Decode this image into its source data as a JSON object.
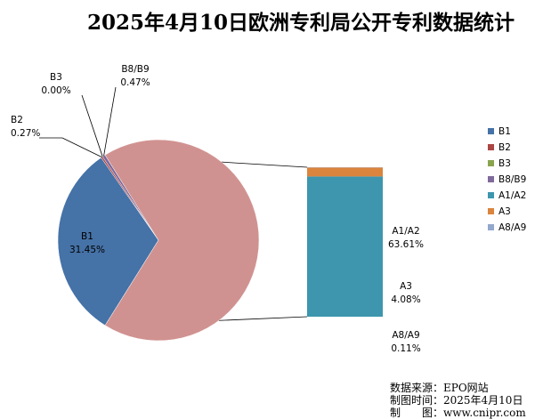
{
  "chart_data": {
    "type": "pie",
    "title": "2025年4月10日欧洲专利局公开专利数据统计",
    "subtype": "pie-of-bar",
    "slices": [
      {
        "name": "B1",
        "label": "B1",
        "value": 31.45,
        "value_label": "31.45%",
        "color": "#4572a7"
      },
      {
        "name": "B2",
        "label": "B2",
        "value": 0.27,
        "value_label": "0.27%",
        "color": "#aa4643"
      },
      {
        "name": "B3",
        "label": "B3",
        "value": 0.0,
        "value_label": "0.00%",
        "color": "#89a54e"
      },
      {
        "name": "B8/B9",
        "label": "B8/B9",
        "value": 0.47,
        "value_label": "0.47%",
        "color": "#80699b"
      },
      {
        "name": "A1/A2",
        "label": "A1/A2",
        "value": 63.61,
        "value_label": "63.61%",
        "color": "#3d96ae"
      },
      {
        "name": "A3",
        "label": "A3",
        "value": 4.08,
        "value_label": "4.08%",
        "color": "#db843d"
      },
      {
        "name": "A8/A9",
        "label": "A8/A9",
        "value": 0.11,
        "value_label": "0.11%",
        "color": "#92a8cd"
      }
    ],
    "pie_other_color": "#d09290",
    "legend_position": "right"
  },
  "source": {
    "line1": "数据来源：EPO网站",
    "line2": "制图时间：2025年4月10日",
    "line3": "制　　图：www.cnipr.com"
  }
}
